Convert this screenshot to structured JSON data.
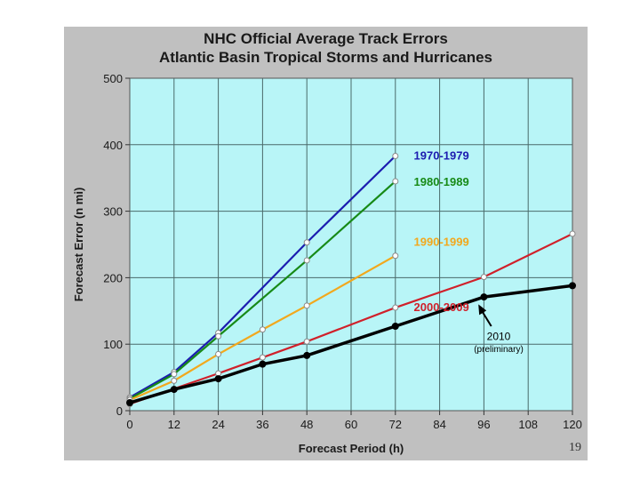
{
  "slide": {
    "number": "19"
  },
  "chart_data": {
    "type": "line",
    "title": "NHC Official Average Track Errors",
    "subtitle": "Atlantic Basin Tropical Storms and Hurricanes",
    "xlabel": "Forecast Period (h)",
    "ylabel": "Forecast Error (n mi)",
    "xlim": [
      0,
      120
    ],
    "ylim": [
      0,
      500
    ],
    "x_ticks": [
      0,
      12,
      24,
      36,
      48,
      60,
      72,
      84,
      96,
      108,
      120
    ],
    "y_ticks": [
      0,
      100,
      200,
      300,
      400,
      500
    ],
    "grid": true,
    "background": "#b8f5f7",
    "series": [
      {
        "name": "1970-1979",
        "color": "#1c1cb0",
        "label_pos": [
          77,
          378
        ],
        "points": [
          [
            0,
            20
          ],
          [
            12,
            58
          ],
          [
            24,
            117
          ],
          [
            48,
            253
          ],
          [
            72,
            383
          ]
        ]
      },
      {
        "name": "1980-1989",
        "color": "#178a17",
        "label_pos": [
          77,
          338
        ],
        "points": [
          [
            0,
            18
          ],
          [
            12,
            55
          ],
          [
            24,
            112
          ],
          [
            48,
            226
          ],
          [
            72,
            345
          ]
        ]
      },
      {
        "name": "1990-1999",
        "color": "#f2a81d",
        "label_pos": [
          77,
          248
        ],
        "points": [
          [
            0,
            16
          ],
          [
            12,
            45
          ],
          [
            24,
            85
          ],
          [
            36,
            122
          ],
          [
            48,
            158
          ],
          [
            72,
            233
          ]
        ]
      },
      {
        "name": "2000-2009",
        "color": "#d0202a",
        "label_pos": [
          77,
          150
        ],
        "points": [
          [
            0,
            10
          ],
          [
            24,
            56
          ],
          [
            36,
            80
          ],
          [
            48,
            104
          ],
          [
            72,
            155
          ],
          [
            96,
            201
          ],
          [
            120,
            266
          ]
        ]
      },
      {
        "name": "2010",
        "color": "#000000",
        "label_pos": [
          100,
          106
        ],
        "bold": true,
        "points": [
          [
            0,
            12
          ],
          [
            12,
            32
          ],
          [
            24,
            48
          ],
          [
            36,
            70
          ],
          [
            48,
            83
          ],
          [
            72,
            127
          ],
          [
            96,
            171
          ],
          [
            120,
            188
          ]
        ]
      }
    ],
    "annotations": [
      {
        "text": "2010",
        "pos": [
          100,
          106
        ]
      },
      {
        "text": "(preliminary)",
        "pos": [
          100,
          88
        ]
      }
    ]
  }
}
